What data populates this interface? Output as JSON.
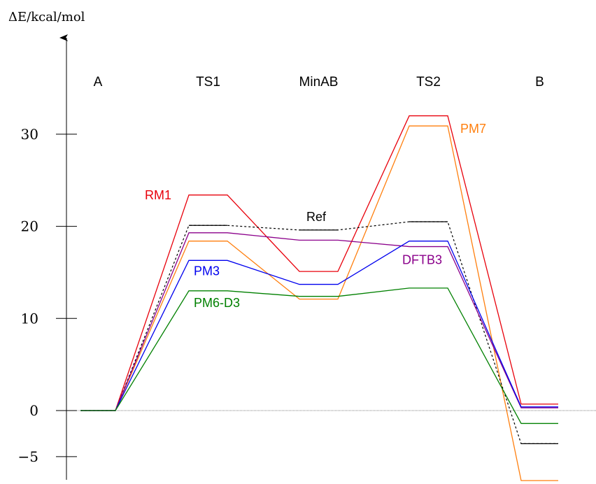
{
  "chart_data": {
    "type": "line",
    "ylabel": "ΔE/kcal/mol",
    "categories": [
      "A",
      "TS1",
      "MinAB",
      "TS2",
      "B"
    ],
    "y_ticks": [
      30,
      20,
      10,
      0,
      -5
    ],
    "y_tick_labels": [
      "30",
      "20",
      "10",
      "0",
      "−5"
    ],
    "ylim": [
      -7.8,
      41
    ],
    "zero_line": true,
    "series": [
      {
        "name": "RM1",
        "color": "#e8000b",
        "dash": "",
        "values": [
          0,
          23.4,
          15.1,
          32.0,
          0.7
        ]
      },
      {
        "name": "PM7",
        "color": "#ff7f0e",
        "dash": "",
        "values": [
          0,
          18.4,
          12.1,
          30.9,
          -7.6
        ]
      },
      {
        "name": "Ref",
        "color": "#000000",
        "dash": "3,3",
        "values": [
          0,
          20.1,
          19.6,
          20.5,
          -3.6
        ]
      },
      {
        "name": "DFTB3",
        "color": "#8b008b",
        "dash": "",
        "values": [
          0,
          19.3,
          18.5,
          17.8,
          0.3
        ]
      },
      {
        "name": "PM3",
        "color": "#0000ee",
        "dash": "",
        "values": [
          0,
          16.3,
          13.7,
          18.4,
          0.4
        ]
      },
      {
        "name": "PM6-D3",
        "color": "#008000",
        "dash": "",
        "values": [
          0,
          13.0,
          12.4,
          13.3,
          -1.4
        ]
      }
    ]
  }
}
